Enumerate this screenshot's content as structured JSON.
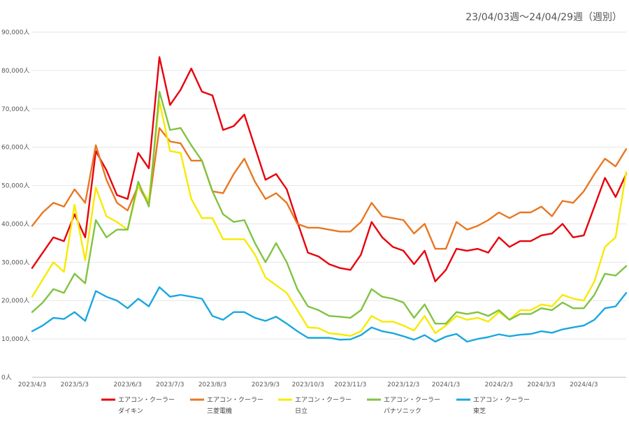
{
  "period_label": "23/04/03週〜24/04/29週（週別）",
  "chart_data": {
    "type": "line",
    "title": "",
    "xlabel": "",
    "ylabel": "",
    "ylim": [
      0,
      90000
    ],
    "y_ticks": [
      0,
      10000,
      20000,
      30000,
      40000,
      50000,
      60000,
      70000,
      80000,
      90000
    ],
    "y_tick_labels": [
      "0人",
      "10,000人",
      "20,000人",
      "30,000人",
      "40,000人",
      "50,000人",
      "60,000人",
      "70,000人",
      "80,000人",
      "90,000人"
    ],
    "grid": true,
    "legend_position": "bottom",
    "x_tick_labels": [
      {
        "index": 0,
        "label": "2023/4/3"
      },
      {
        "index": 4,
        "label": "2023/5/3"
      },
      {
        "index": 9,
        "label": "2023/6/3"
      },
      {
        "index": 13,
        "label": "2023/7/3"
      },
      {
        "index": 17,
        "label": "2023/8/3"
      },
      {
        "index": 22,
        "label": "2023/9/3"
      },
      {
        "index": 26,
        "label": "2023/10/3"
      },
      {
        "index": 30,
        "label": "2023/11/3"
      },
      {
        "index": 35,
        "label": "2023/12/3"
      },
      {
        "index": 39,
        "label": "2024/1/3"
      },
      {
        "index": 44,
        "label": "2024/2/3"
      },
      {
        "index": 48,
        "label": "2024/3/3"
      },
      {
        "index": 52,
        "label": "2024/4/3"
      }
    ],
    "n_weeks": 57,
    "series": [
      {
        "name": "エアコン・クーラー ダイキン",
        "legend_line1": "エアコン・クーラー",
        "legend_line2": "ダイキン",
        "color": "#e8000b",
        "values": [
          28500,
          32500,
          36500,
          35500,
          42500,
          36500,
          59000,
          54000,
          47500,
          46500,
          58500,
          54500,
          83500,
          71000,
          75000,
          80500,
          74500,
          73500,
          64500,
          65500,
          68500,
          60000,
          51500,
          53000,
          49000,
          40500,
          32500,
          31500,
          29500,
          28500,
          28000,
          32000,
          40500,
          36500,
          34000,
          33000,
          29500,
          33000,
          25000,
          28000,
          33500,
          33000,
          33500,
          32500,
          36500,
          34000,
          35500,
          35500,
          37000,
          37500,
          40000,
          36500,
          37000,
          44500,
          52000,
          47000,
          53000
        ]
      },
      {
        "name": "エアコン・クーラー 三菱電機",
        "legend_line1": "エアコン・クーラー",
        "legend_line2": "三菱電機",
        "color": "#e87722",
        "values": [
          39500,
          43000,
          45500,
          44500,
          49000,
          45500,
          60500,
          51500,
          45500,
          43500,
          50000,
          45000,
          65000,
          61500,
          61000,
          56500,
          56500,
          48500,
          48000,
          53000,
          57000,
          51000,
          46500,
          48000,
          45500,
          40000,
          39000,
          39000,
          38500,
          38000,
          38000,
          40500,
          45500,
          42000,
          41500,
          41000,
          37500,
          40000,
          33500,
          33500,
          40500,
          38500,
          39500,
          41000,
          43000,
          41500,
          43000,
          43000,
          44500,
          42000,
          46000,
          45500,
          48500,
          53000,
          57000,
          55000,
          59500
        ]
      },
      {
        "name": "エアコン・クーラー 日立",
        "legend_line1": "エアコン・クーラー",
        "legend_line2": "日立",
        "color": "#f7ea00",
        "values": [
          21000,
          25500,
          30000,
          27500,
          45000,
          30500,
          49500,
          42000,
          40500,
          38500,
          50000,
          46000,
          72000,
          59000,
          58500,
          46500,
          41500,
          41500,
          36000,
          36000,
          36000,
          32000,
          26000,
          24000,
          22000,
          17500,
          13000,
          12800,
          11500,
          11200,
          10800,
          12000,
          16000,
          14500,
          14500,
          13500,
          12200,
          16000,
          11500,
          13500,
          16000,
          15000,
          15500,
          14500,
          17000,
          15000,
          17500,
          17500,
          19000,
          18500,
          21500,
          20500,
          20000,
          25000,
          34000,
          36500,
          53500
        ]
      },
      {
        "name": "エアコン・クーラー パナソニック",
        "legend_line1": "エアコン・クーラー",
        "legend_line2": "パナソニック",
        "color": "#80c342",
        "values": [
          17000,
          19500,
          23000,
          22000,
          27000,
          24500,
          41000,
          36500,
          38500,
          38500,
          51000,
          44500,
          74500,
          64500,
          65000,
          60500,
          56500,
          48500,
          42500,
          40500,
          41000,
          35000,
          30000,
          35000,
          30000,
          23000,
          18500,
          17500,
          16000,
          15800,
          15500,
          17500,
          23000,
          21000,
          20500,
          19500,
          15500,
          19000,
          14000,
          14000,
          17000,
          16500,
          17000,
          16000,
          17500,
          15000,
          16500,
          16500,
          18000,
          17500,
          19500,
          18000,
          18000,
          21500,
          27000,
          26500,
          29000
        ]
      },
      {
        "name": "エアコン・クーラー 東芝",
        "legend_line1": "エアコン・クーラー",
        "legend_line2": "東芝",
        "color": "#1aa7e0",
        "values": [
          12000,
          13500,
          15500,
          15200,
          17000,
          14700,
          22500,
          21000,
          20000,
          18000,
          20500,
          18500,
          23500,
          21000,
          21500,
          21000,
          20500,
          16000,
          15000,
          17000,
          17000,
          15500,
          14700,
          15800,
          14000,
          12000,
          10300,
          10300,
          10300,
          9800,
          9900,
          11000,
          13000,
          12000,
          11500,
          10700,
          9800,
          11000,
          9300,
          10600,
          11300,
          9300,
          10000,
          10500,
          11200,
          10700,
          11100,
          11300,
          12000,
          11600,
          12500,
          13000,
          13500,
          15000,
          18000,
          18500,
          22000
        ]
      }
    ]
  }
}
